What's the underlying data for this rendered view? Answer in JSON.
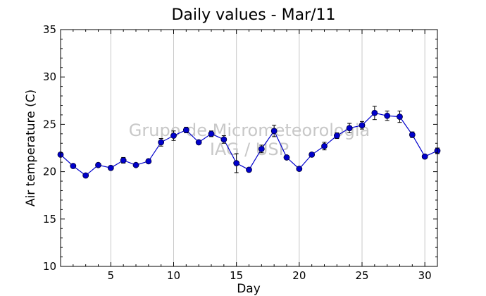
{
  "chart_data": {
    "type": "line",
    "title": "Daily values - Mar/11",
    "xlabel": "Day",
    "ylabel": "Air temperature (C)",
    "xlim": [
      1,
      31
    ],
    "ylim": [
      10,
      35
    ],
    "x_ticks": [
      5,
      10,
      15,
      20,
      25,
      30
    ],
    "y_ticks": [
      10,
      15,
      20,
      25,
      30,
      35
    ],
    "grid": "vertical lines at major x ticks",
    "series_color": "#0000cc",
    "series": [
      {
        "x": [
          1,
          2,
          3,
          4,
          5,
          6,
          7,
          8,
          9,
          10,
          11,
          12,
          13,
          14,
          15,
          16,
          17,
          18,
          19,
          20,
          21,
          22,
          23,
          24,
          25,
          26,
          27,
          28,
          29,
          30,
          31
        ],
        "values": [
          21.8,
          20.6,
          19.6,
          20.7,
          20.4,
          21.2,
          20.7,
          21.1,
          23.1,
          23.8,
          24.4,
          23.1,
          24.0,
          23.4,
          20.9,
          20.2,
          22.4,
          24.3,
          21.5,
          20.3,
          21.8,
          22.7,
          23.8,
          24.6,
          24.9,
          26.2,
          25.9,
          25.8,
          23.9,
          21.6,
          22.2
        ],
        "error": [
          0.2,
          0.15,
          0.15,
          0.15,
          0.15,
          0.3,
          0.15,
          0.2,
          0.4,
          0.5,
          0.3,
          0.2,
          0.3,
          0.4,
          1.0,
          0.15,
          0.4,
          0.6,
          0.2,
          0.15,
          0.2,
          0.4,
          0.3,
          0.5,
          0.4,
          0.7,
          0.5,
          0.6,
          0.3,
          0.2,
          0.3
        ]
      }
    ]
  },
  "watermark": {
    "line1": "Grupo de Micrometeorologia",
    "line2": "IAG / USP"
  }
}
